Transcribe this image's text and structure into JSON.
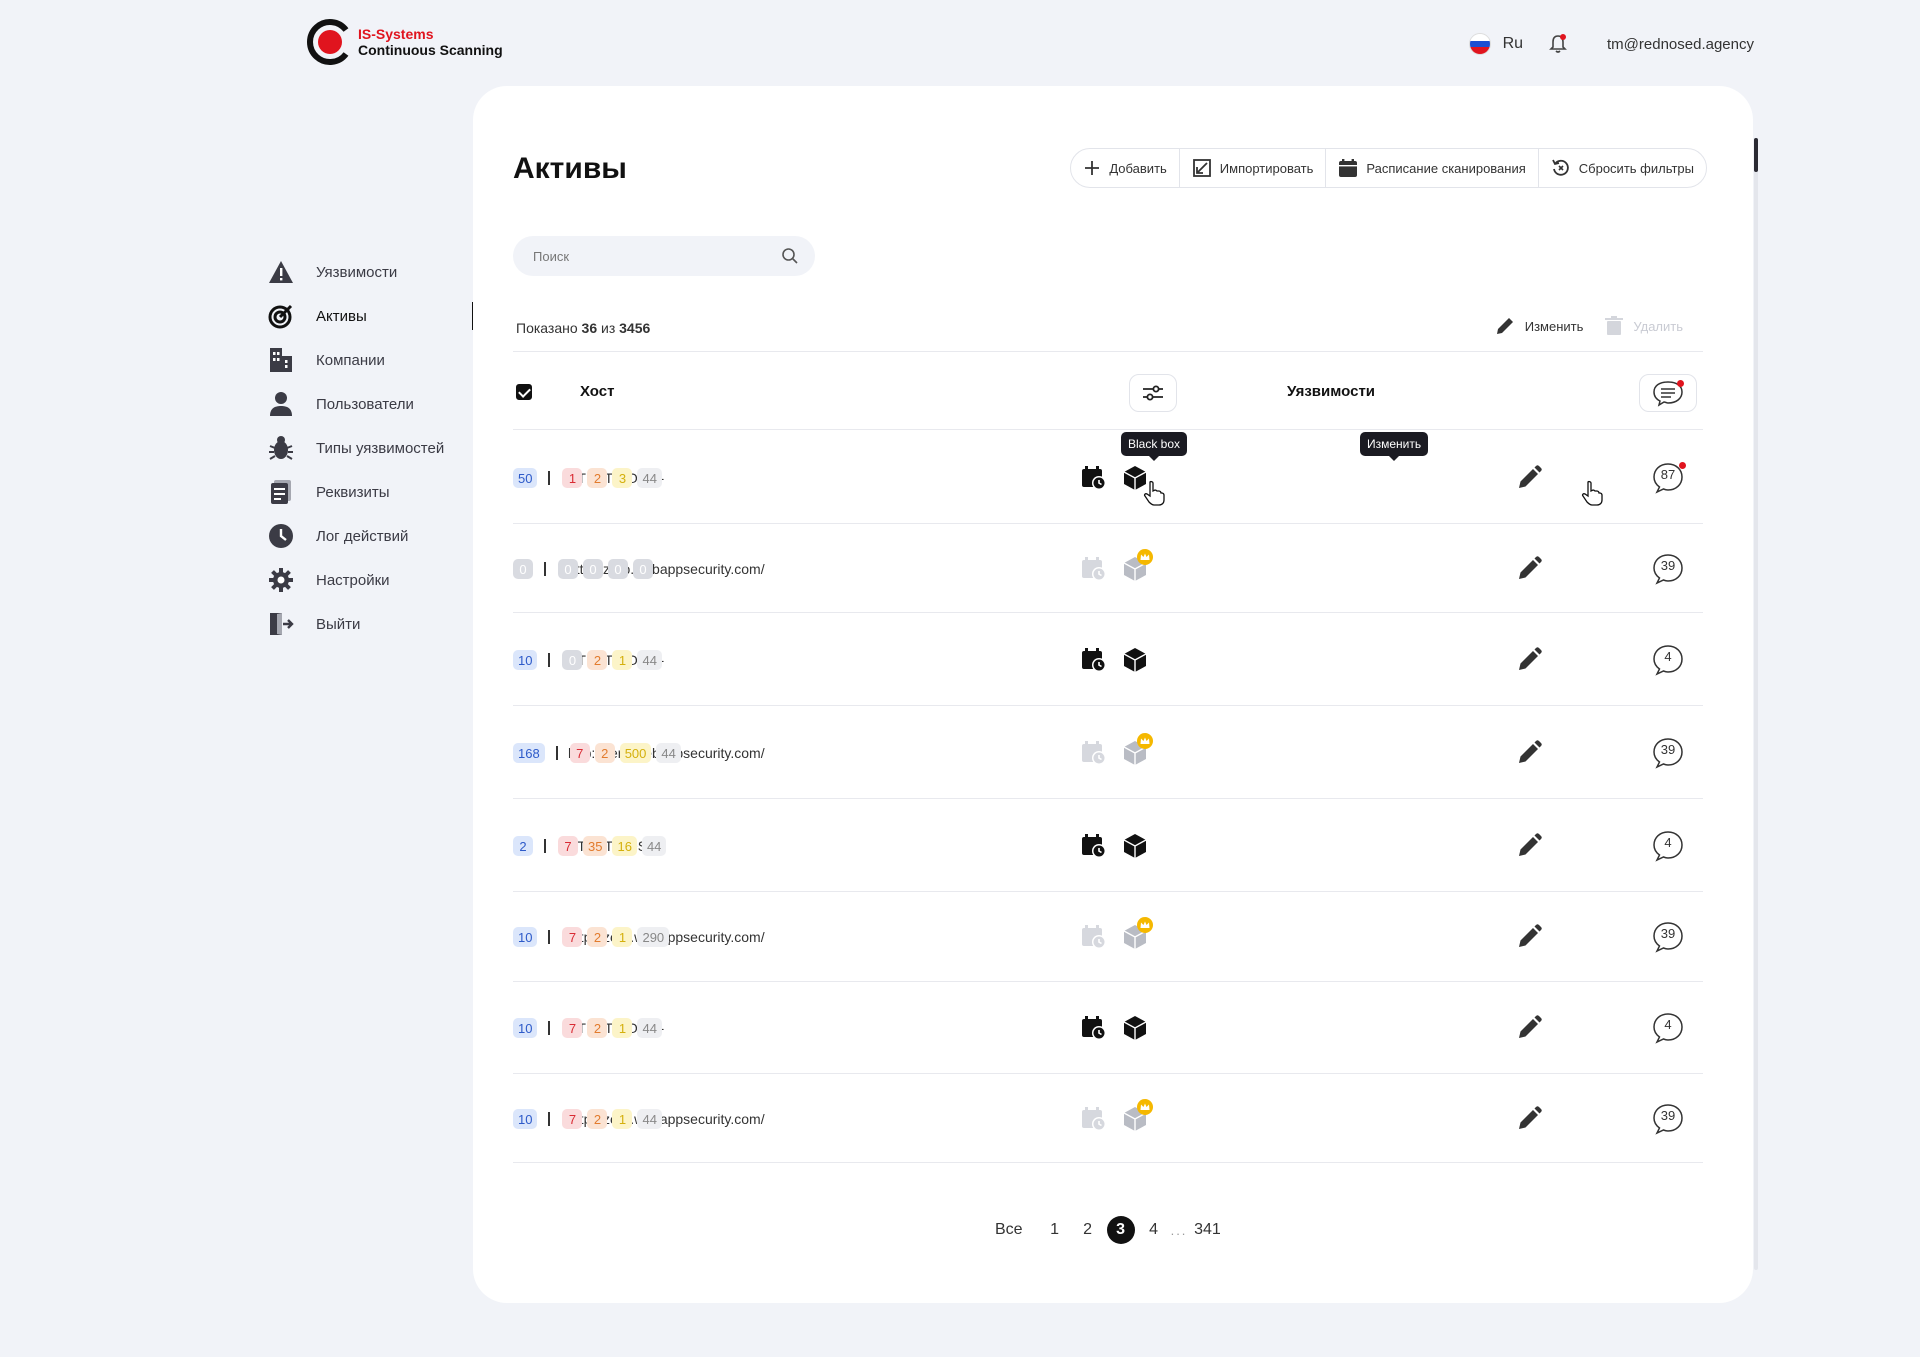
{
  "header": {
    "logo": {
      "brand": "IS-Systems",
      "product": "Continuous Scanning"
    },
    "language": "Ru",
    "user_email": "tm@rednosed.agency"
  },
  "sidebar": {
    "items": [
      {
        "label": "Уязвимости",
        "icon": "warning-icon"
      },
      {
        "label": "Активы",
        "icon": "target-icon",
        "active": true
      },
      {
        "label": "Компании",
        "icon": "building-icon"
      },
      {
        "label": "Пользователи",
        "icon": "user-icon"
      },
      {
        "label": "Типы уязвимостей",
        "icon": "bug-icon"
      },
      {
        "label": "Реквизиты",
        "icon": "document-icon"
      },
      {
        "label": "Лог действий",
        "icon": "clock-icon"
      },
      {
        "label": "Настройки",
        "icon": "gear-icon"
      },
      {
        "label": "Выйти",
        "icon": "logout-icon"
      }
    ]
  },
  "main": {
    "title": "Активы",
    "actions": {
      "add": "Добавить",
      "import": "Импортировать",
      "schedule": "Расписание сканирования",
      "reset": "Сбросить фильтры"
    },
    "search": {
      "placeholder": "Поиск",
      "value": ""
    },
    "shown": {
      "prefix": "Показано",
      "count": "36",
      "of": "из",
      "total": "3456"
    },
    "bulk": {
      "edit": "Изменить",
      "delete": "Удалить"
    },
    "table": {
      "columns": {
        "host": "Хост",
        "vulns": "Уязвимости"
      },
      "select_all_checked": true,
      "rows": [
        {
          "host": "--TEST HOST--",
          "active": true,
          "premium": false,
          "vulns": [
            "50",
            "1",
            "2",
            "3",
            "44"
          ],
          "comments": "87",
          "unread": true
        },
        {
          "host": "http://zero.webappsecurity.com/",
          "active": false,
          "premium": true,
          "vulns": [
            "0",
            "0",
            "0",
            "0",
            "0"
          ],
          "comments": "39",
          "unread": false
        },
        {
          "host": "--TEST HOST--",
          "active": true,
          "premium": false,
          "vulns": [
            "10",
            "0",
            "2",
            "1",
            "44"
          ],
          "comments": "4",
          "unread": false
        },
        {
          "host": "http://zero.webappsecurity.com/",
          "active": false,
          "premium": true,
          "vulns": [
            "168",
            "7",
            "2",
            "500",
            "44"
          ],
          "comments": "39",
          "unread": false
        },
        {
          "host": "--TEST HOST--",
          "active": true,
          "premium": false,
          "vulns": [
            "2",
            "7",
            "35",
            "16",
            "44"
          ],
          "comments": "4",
          "unread": false
        },
        {
          "host": "http://zero.webappsecurity.com/",
          "active": false,
          "premium": true,
          "vulns": [
            "10",
            "7",
            "2",
            "1",
            "290"
          ],
          "comments": "39",
          "unread": false
        },
        {
          "host": "--TEST HOST--",
          "active": true,
          "premium": false,
          "vulns": [
            "10",
            "7",
            "2",
            "1",
            "44"
          ],
          "comments": "4",
          "unread": false
        },
        {
          "host": "http://zero.webappsecurity.com/",
          "active": false,
          "premium": true,
          "vulns": [
            "10",
            "7",
            "2",
            "1",
            "44"
          ],
          "comments": "39",
          "unread": false
        }
      ]
    },
    "tooltips": {
      "blackbox": "Black box",
      "edit": "Изменить"
    },
    "pagination": {
      "all": "Все",
      "pages": [
        "1",
        "2",
        "3",
        "4"
      ],
      "current": "3",
      "ellipsis": "...",
      "last": "341"
    }
  },
  "colors": {
    "brand_red": "#e0141e",
    "background": "#f1f3f8",
    "critical": "#d92a33",
    "high": "#e27c2e",
    "medium": "#d4b00c",
    "total": "#2d5ac9",
    "premium_crown": "#f5b800"
  }
}
